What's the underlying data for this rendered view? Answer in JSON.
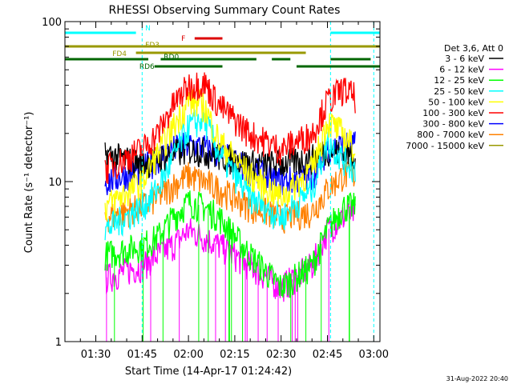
{
  "chart_data": {
    "type": "line",
    "title": "RHESSI Observing Summary Count Rates",
    "xlabel": "Start Time (14-Apr-17 01:24:42)",
    "ylabel": "Count Rate (s⁻¹ detector⁻¹)",
    "yscale": "log",
    "ylim": [
      1,
      100
    ],
    "xlim_minutes": [
      -5,
      97
    ],
    "x_ticks": [
      {
        "m": 5,
        "label": "01:30"
      },
      {
        "m": 20,
        "label": "01:45"
      },
      {
        "m": 35,
        "label": "02:00"
      },
      {
        "m": 50,
        "label": "02:15"
      },
      {
        "m": 65,
        "label": "02:30"
      },
      {
        "m": 80,
        "label": "02:45"
      },
      {
        "m": 95,
        "label": "03:00"
      }
    ],
    "y_ticks": [
      {
        "v": 1,
        "label": "1"
      },
      {
        "v": 10,
        "label": "10"
      },
      {
        "v": 100,
        "label": "100"
      }
    ],
    "legend_header": "Det 3,6, Att 0",
    "legend_position": "right",
    "series": [
      {
        "name": "3 - 6 keV",
        "color": "#000000",
        "x": [
          8,
          20,
          25,
          30,
          35,
          40,
          45,
          55,
          65,
          75,
          80,
          85,
          89
        ],
        "y": [
          15,
          13,
          14,
          15,
          16,
          15.5,
          14.5,
          13,
          13,
          14,
          16,
          15,
          15
        ]
      },
      {
        "name": "6 - 12 keV",
        "color": "#ff00ff",
        "x": [
          8,
          20,
          25,
          30,
          35,
          40,
          45,
          55,
          65,
          75,
          80,
          85,
          89
        ],
        "y": [
          2.5,
          3,
          3.5,
          4,
          5,
          4.5,
          4,
          3,
          2.2,
          3,
          5,
          6,
          6.5
        ]
      },
      {
        "name": "12 - 25 keV",
        "color": "#00ff00",
        "x": [
          8,
          20,
          25,
          30,
          35,
          40,
          45,
          55,
          65,
          75,
          80,
          85,
          89
        ],
        "y": [
          3.5,
          4,
          4.5,
          6,
          7.5,
          7,
          6,
          3.5,
          2.2,
          3,
          5,
          7,
          7
        ]
      },
      {
        "name": "25 - 50 keV",
        "color": "#00ffff",
        "x": [
          8,
          20,
          25,
          30,
          35,
          40,
          45,
          55,
          65,
          75,
          80,
          85,
          89
        ],
        "y": [
          5,
          7,
          9,
          14,
          22,
          25,
          15,
          8,
          6,
          9,
          18,
          14,
          12
        ]
      },
      {
        "name": "50 - 100 keV",
        "color": "#ffff00",
        "x": [
          8,
          20,
          25,
          30,
          35,
          40,
          45,
          55,
          65,
          75,
          80,
          85,
          89
        ],
        "y": [
          7,
          10,
          15,
          22,
          32,
          30,
          18,
          11,
          8,
          12,
          24,
          20,
          16
        ]
      },
      {
        "name": "100 - 300 keV",
        "color": "#ff0000",
        "x": [
          8,
          20,
          25,
          30,
          35,
          40,
          45,
          55,
          65,
          75,
          80,
          85,
          89
        ],
        "y": [
          12,
          16,
          20,
          30,
          40,
          42,
          30,
          20,
          16,
          20,
          32,
          38,
          34
        ]
      },
      {
        "name": "300 - 800 keV",
        "color": "#0000ff",
        "x": [
          8,
          20,
          25,
          30,
          35,
          40,
          45,
          55,
          65,
          75,
          80,
          85,
          89
        ],
        "y": [
          10,
          12,
          14,
          16,
          17,
          16.5,
          15,
          12,
          10,
          11,
          16,
          17,
          17
        ]
      },
      {
        "name": "800 - 7000 keV",
        "color": "#ff8000",
        "x": [
          8,
          20,
          25,
          30,
          35,
          40,
          45,
          55,
          65,
          75,
          80,
          85,
          89
        ],
        "y": [
          6,
          7,
          8,
          9.5,
          11,
          10,
          9,
          7,
          6,
          6.5,
          9,
          11,
          11
        ]
      },
      {
        "name": "7000 - 15000 keV",
        "color": "#999900",
        "x": [
          8,
          20,
          25,
          30,
          35,
          40,
          45,
          55,
          65,
          75,
          80,
          85,
          89
        ],
        "y": [
          1,
          1,
          1,
          1,
          1,
          1,
          1,
          1,
          1,
          1,
          1,
          1,
          1
        ]
      }
    ],
    "flags": [
      {
        "label": "N",
        "color": "#00ffff",
        "segments": [
          [
            -5,
            18
          ],
          [
            81,
            97
          ]
        ]
      },
      {
        "label": "F",
        "color": "#dd0000",
        "segments": [
          [
            37,
            46
          ]
        ]
      },
      {
        "label": "FD3",
        "color": "#999900",
        "segments": [
          [
            -5,
            97
          ]
        ]
      },
      {
        "label": "FD4",
        "color": "#999900",
        "segments": [
          [
            18,
            73
          ]
        ]
      },
      {
        "label": "RD0",
        "color": "#006600",
        "segments": [
          [
            -5,
            22
          ],
          [
            26,
            57
          ],
          [
            62,
            68
          ],
          [
            81,
            94
          ]
        ]
      },
      {
        "label": "RD6",
        "color": "#006600",
        "segments": [
          [
            24,
            46
          ],
          [
            70,
            97
          ]
        ]
      }
    ],
    "vlines_minutes": [
      -5,
      20,
      81,
      95
    ],
    "timestamp": "31-Aug-2022 20:40"
  }
}
